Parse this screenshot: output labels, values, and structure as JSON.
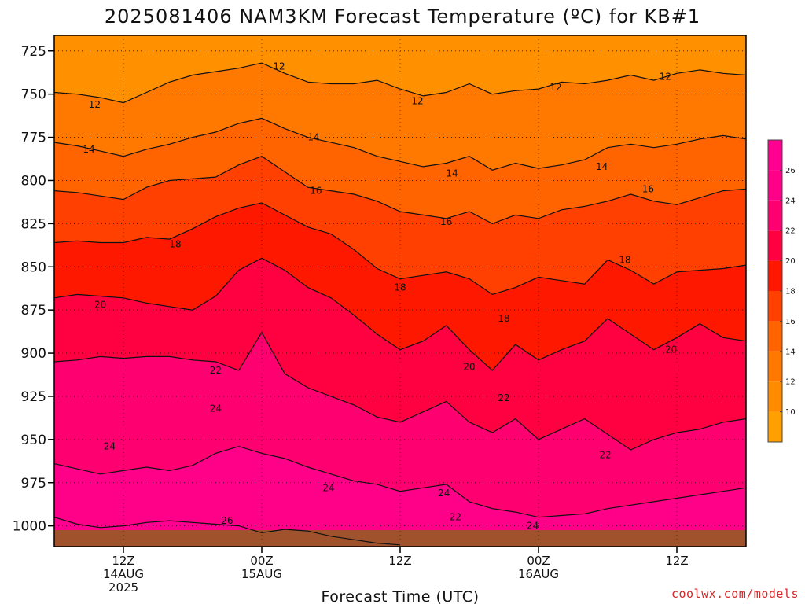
{
  "chart_data": {
    "type": "heatmap",
    "title": "2025081406 NAM3KM Forecast Temperature (ºC) for KB#1",
    "xlabel": "Forecast Time (UTC)",
    "ylabel": "",
    "credit": "coolwx.com/models",
    "y_axis": {
      "scale": "pressure (hPa), inverted",
      "range": [
        1012,
        716
      ],
      "ticks": [
        "725",
        "750",
        "775",
        "800",
        "825",
        "850",
        "875",
        "900",
        "925",
        "950",
        "975",
        "1000"
      ]
    },
    "x_axis": {
      "range_hours": [
        6,
        66
      ],
      "ticks": [
        {
          "hour": 12,
          "lines": [
            "12Z",
            "14AUG",
            "2025"
          ]
        },
        {
          "hour": 24,
          "lines": [
            "00Z",
            "15AUG"
          ]
        },
        {
          "hour": 36,
          "lines": [
            "12Z"
          ]
        },
        {
          "hour": 48,
          "lines": [
            "00Z",
            "16AUG"
          ]
        },
        {
          "hour": 60,
          "lines": [
            "12Z"
          ]
        }
      ]
    },
    "grid": true,
    "colorbar": {
      "ticks": [
        "10",
        "12",
        "14",
        "16",
        "18",
        "20",
        "22",
        "24",
        "26"
      ],
      "bands": [
        {
          "min": 8,
          "max": 10,
          "color": "#ffa000"
        },
        {
          "min": 10,
          "max": 12,
          "color": "#ff8c00"
        },
        {
          "min": 12,
          "max": 14,
          "color": "#ff7800"
        },
        {
          "min": 14,
          "max": 16,
          "color": "#ff6400"
        },
        {
          "min": 16,
          "max": 18,
          "color": "#ff4000"
        },
        {
          "min": 18,
          "max": 20,
          "color": "#ff1800"
        },
        {
          "min": 20,
          "max": 22,
          "color": "#ff0040"
        },
        {
          "min": 22,
          "max": 24,
          "color": "#ff0070"
        },
        {
          "min": 24,
          "max": 26,
          "color": "#ff0088"
        },
        {
          "min": 26,
          "max": 28,
          "color": "#ff0090"
        }
      ]
    },
    "terrain_color": "#a0522d",
    "background_color": "#ff9000",
    "isotherms": [
      {
        "value": 12,
        "label": "12",
        "points": [
          [
            6,
            749
          ],
          [
            8,
            750
          ],
          [
            10,
            752
          ],
          [
            12,
            755
          ],
          [
            14,
            749
          ],
          [
            16,
            743
          ],
          [
            18,
            739
          ],
          [
            20,
            737
          ],
          [
            22,
            735
          ],
          [
            24,
            732
          ],
          [
            26,
            738
          ],
          [
            28,
            743
          ],
          [
            30,
            744
          ],
          [
            32,
            744
          ],
          [
            34,
            742
          ],
          [
            36,
            747
          ],
          [
            38,
            751
          ],
          [
            40,
            749
          ],
          [
            42,
            744
          ],
          [
            44,
            750
          ],
          [
            46,
            748
          ],
          [
            48,
            747
          ],
          [
            50,
            743
          ],
          [
            52,
            744
          ],
          [
            54,
            742
          ],
          [
            56,
            739
          ],
          [
            58,
            742
          ],
          [
            60,
            738
          ],
          [
            62,
            736
          ],
          [
            64,
            738
          ],
          [
            66,
            739
          ]
        ],
        "labels": [
          {
            "x": 25.5,
            "y": 734,
            "text": "12"
          },
          {
            "x": 9.5,
            "y": 756,
            "text": "12"
          },
          {
            "x": 37.5,
            "y": 754,
            "text": "12"
          },
          {
            "x": 49.5,
            "y": 746,
            "text": "12"
          },
          {
            "x": 59.0,
            "y": 740,
            "text": "12"
          }
        ]
      },
      {
        "value": 14,
        "label": "14",
        "points": [
          [
            6,
            778
          ],
          [
            8,
            780
          ],
          [
            10,
            783
          ],
          [
            12,
            786
          ],
          [
            14,
            782
          ],
          [
            16,
            779
          ],
          [
            18,
            775
          ],
          [
            20,
            772
          ],
          [
            22,
            767
          ],
          [
            24,
            764
          ],
          [
            26,
            770
          ],
          [
            28,
            775
          ],
          [
            30,
            778
          ],
          [
            32,
            781
          ],
          [
            34,
            786
          ],
          [
            36,
            789
          ],
          [
            38,
            792
          ],
          [
            40,
            790
          ],
          [
            42,
            786
          ],
          [
            44,
            794
          ],
          [
            46,
            790
          ],
          [
            48,
            793
          ],
          [
            50,
            791
          ],
          [
            52,
            788
          ],
          [
            54,
            781
          ],
          [
            56,
            779
          ],
          [
            58,
            781
          ],
          [
            60,
            779
          ],
          [
            62,
            776
          ],
          [
            64,
            774
          ],
          [
            66,
            776
          ]
        ],
        "labels": [
          {
            "x": 9.0,
            "y": 782,
            "text": "14"
          },
          {
            "x": 28.5,
            "y": 775,
            "text": "14"
          },
          {
            "x": 40.5,
            "y": 796,
            "text": "14"
          },
          {
            "x": 53.5,
            "y": 792,
            "text": "14"
          }
        ]
      },
      {
        "value": 16,
        "label": "16",
        "points": [
          [
            6,
            806
          ],
          [
            8,
            807
          ],
          [
            10,
            809
          ],
          [
            12,
            811
          ],
          [
            14,
            804
          ],
          [
            16,
            800
          ],
          [
            18,
            799
          ],
          [
            20,
            798
          ],
          [
            22,
            791
          ],
          [
            24,
            786
          ],
          [
            26,
            795
          ],
          [
            28,
            804
          ],
          [
            30,
            806
          ],
          [
            32,
            808
          ],
          [
            34,
            812
          ],
          [
            36,
            818
          ],
          [
            38,
            820
          ],
          [
            40,
            822
          ],
          [
            42,
            818
          ],
          [
            44,
            825
          ],
          [
            46,
            820
          ],
          [
            48,
            822
          ],
          [
            50,
            817
          ],
          [
            52,
            815
          ],
          [
            54,
            812
          ],
          [
            56,
            808
          ],
          [
            58,
            812
          ],
          [
            60,
            814
          ],
          [
            62,
            810
          ],
          [
            64,
            806
          ],
          [
            66,
            805
          ]
        ],
        "labels": [
          {
            "x": 28.7,
            "y": 806,
            "text": "16"
          },
          {
            "x": 40.0,
            "y": 824,
            "text": "16"
          },
          {
            "x": 57.5,
            "y": 805,
            "text": "16"
          }
        ]
      },
      {
        "value": 18,
        "label": "18",
        "points": [
          [
            6,
            836
          ],
          [
            8,
            835
          ],
          [
            10,
            836
          ],
          [
            12,
            836
          ],
          [
            14,
            833
          ],
          [
            16,
            834
          ],
          [
            18,
            828
          ],
          [
            20,
            821
          ],
          [
            22,
            816
          ],
          [
            24,
            813
          ],
          [
            26,
            820
          ],
          [
            28,
            827
          ],
          [
            30,
            831
          ],
          [
            32,
            840
          ],
          [
            34,
            851
          ],
          [
            36,
            857
          ],
          [
            38,
            855
          ],
          [
            40,
            853
          ],
          [
            42,
            857
          ],
          [
            44,
            866
          ],
          [
            46,
            862
          ],
          [
            48,
            856
          ],
          [
            50,
            858
          ],
          [
            52,
            860
          ],
          [
            54,
            846
          ],
          [
            56,
            852
          ],
          [
            58,
            860
          ],
          [
            60,
            853
          ],
          [
            62,
            852
          ],
          [
            64,
            851
          ],
          [
            66,
            849
          ]
        ],
        "labels": [
          {
            "x": 16.5,
            "y": 837,
            "text": "18"
          },
          {
            "x": 36.0,
            "y": 862,
            "text": "18"
          },
          {
            "x": 45.0,
            "y": 880,
            "text": "18"
          },
          {
            "x": 55.5,
            "y": 846,
            "text": "18"
          }
        ]
      },
      {
        "value": 20,
        "label": "20",
        "points": [
          [
            6,
            868
          ],
          [
            8,
            866
          ],
          [
            10,
            867
          ],
          [
            12,
            868
          ],
          [
            14,
            871
          ],
          [
            16,
            873
          ],
          [
            18,
            875
          ],
          [
            20,
            867
          ],
          [
            22,
            852
          ],
          [
            24,
            845
          ],
          [
            26,
            852
          ],
          [
            28,
            862
          ],
          [
            30,
            868
          ],
          [
            32,
            878
          ],
          [
            34,
            889
          ],
          [
            36,
            898
          ],
          [
            38,
            893
          ],
          [
            40,
            884
          ],
          [
            42,
            898
          ],
          [
            44,
            910
          ],
          [
            46,
            895
          ],
          [
            48,
            904
          ],
          [
            50,
            898
          ],
          [
            52,
            893
          ],
          [
            54,
            880
          ],
          [
            56,
            889
          ],
          [
            58,
            898
          ],
          [
            60,
            891
          ],
          [
            62,
            883
          ],
          [
            64,
            891
          ],
          [
            66,
            893
          ]
        ],
        "labels": [
          {
            "x": 10.0,
            "y": 872,
            "text": "20"
          },
          {
            "x": 42.0,
            "y": 908,
            "text": "20"
          },
          {
            "x": 59.5,
            "y": 898,
            "text": "20"
          }
        ]
      },
      {
        "value": 22,
        "label": "22",
        "points": [
          [
            6,
            905
          ],
          [
            8,
            904
          ],
          [
            10,
            902
          ],
          [
            12,
            903
          ],
          [
            14,
            902
          ],
          [
            16,
            902
          ],
          [
            18,
            904
          ],
          [
            20,
            905
          ],
          [
            22,
            910
          ],
          [
            24,
            888
          ],
          [
            26,
            912
          ],
          [
            28,
            920
          ],
          [
            30,
            925
          ],
          [
            32,
            930
          ],
          [
            34,
            937
          ],
          [
            36,
            940
          ],
          [
            38,
            934
          ],
          [
            40,
            928
          ],
          [
            42,
            940
          ],
          [
            44,
            946
          ],
          [
            46,
            938
          ],
          [
            48,
            950
          ],
          [
            50,
            944
          ],
          [
            52,
            938
          ],
          [
            54,
            947
          ],
          [
            56,
            956
          ],
          [
            58,
            950
          ],
          [
            60,
            946
          ],
          [
            62,
            944
          ],
          [
            64,
            940
          ],
          [
            66,
            938
          ]
        ],
        "labels": [
          {
            "x": 20.0,
            "y": 910,
            "text": "22"
          },
          {
            "x": 45.0,
            "y": 926,
            "text": "22"
          },
          {
            "x": 53.8,
            "y": 959,
            "text": "22"
          },
          {
            "x": 40.8,
            "y": 995,
            "text": "22"
          }
        ]
      },
      {
        "value": 24,
        "label": "24",
        "points": [
          [
            6,
            964
          ],
          [
            8,
            967
          ],
          [
            10,
            970
          ],
          [
            12,
            968
          ],
          [
            14,
            966
          ],
          [
            16,
            968
          ],
          [
            18,
            965
          ],
          [
            20,
            958
          ],
          [
            22,
            954
          ],
          [
            24,
            958
          ],
          [
            26,
            961
          ],
          [
            28,
            966
          ],
          [
            30,
            970
          ],
          [
            32,
            974
          ],
          [
            34,
            976
          ],
          [
            36,
            980
          ],
          [
            38,
            978
          ],
          [
            40,
            976
          ],
          [
            42,
            986
          ],
          [
            44,
            990
          ],
          [
            46,
            992
          ],
          [
            48,
            995
          ],
          [
            50,
            994
          ],
          [
            52,
            993
          ],
          [
            54,
            990
          ],
          [
            56,
            988
          ],
          [
            58,
            986
          ],
          [
            60,
            984
          ],
          [
            62,
            982
          ],
          [
            64,
            980
          ],
          [
            66,
            978
          ]
        ],
        "labels": [
          {
            "x": 20.0,
            "y": 932,
            "text": "24"
          },
          {
            "x": 10.8,
            "y": 954,
            "text": "24"
          },
          {
            "x": 29.8,
            "y": 978,
            "text": "24"
          },
          {
            "x": 39.8,
            "y": 981,
            "text": "24"
          },
          {
            "x": 47.5,
            "y": 1000,
            "text": "24"
          }
        ]
      },
      {
        "value": 26,
        "label": "26",
        "points": [
          [
            6,
            995
          ],
          [
            8,
            999
          ],
          [
            10,
            1001
          ],
          [
            12,
            1000
          ],
          [
            14,
            998
          ],
          [
            16,
            997
          ],
          [
            18,
            998
          ],
          [
            20,
            999
          ],
          [
            22,
            1000
          ],
          [
            24,
            1004
          ],
          [
            26,
            1002
          ],
          [
            28,
            1003
          ],
          [
            30,
            1006
          ],
          [
            32,
            1008
          ],
          [
            34,
            1010
          ],
          [
            36,
            1011
          ]
        ],
        "labels": [
          {
            "x": 21.0,
            "y": 997,
            "text": "26"
          }
        ]
      }
    ]
  }
}
